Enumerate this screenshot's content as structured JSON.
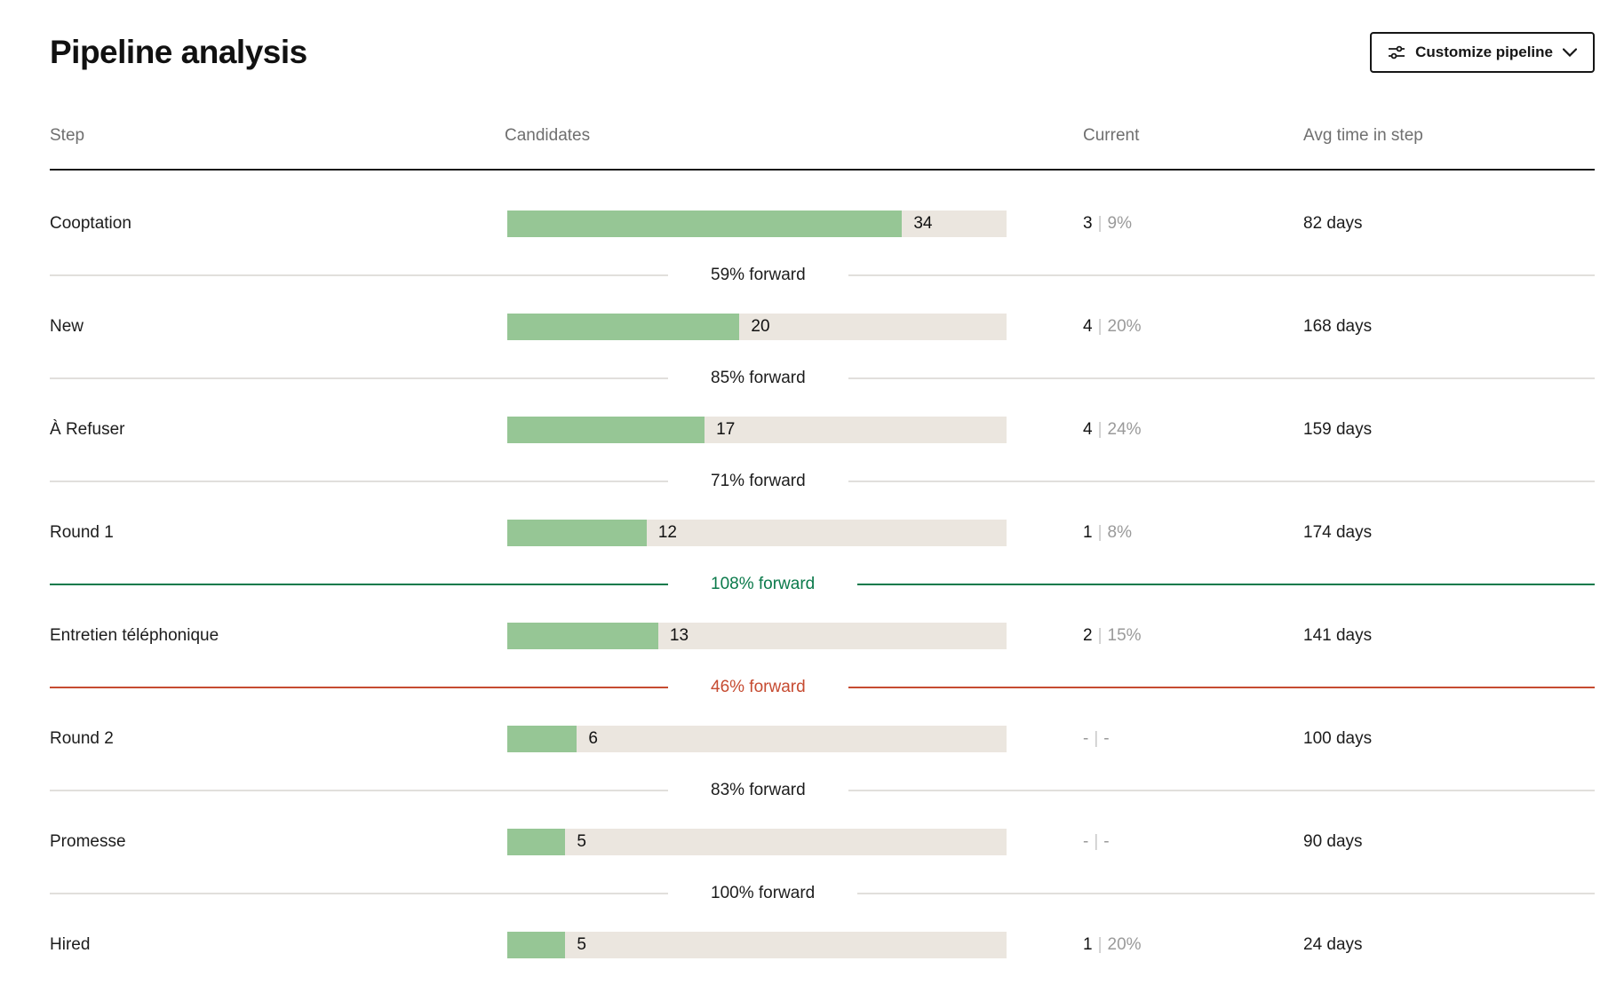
{
  "header": {
    "title": "Pipeline analysis",
    "customize_button": {
      "label": "Customize pipeline"
    }
  },
  "columns": {
    "step": "Step",
    "candidates": "Candidates",
    "current": "Current",
    "avg_time": "Avg time in step"
  },
  "ui": {
    "divider": "|"
  },
  "colors": {
    "bar_fill": "#96C695",
    "bar_track": "#EBE6DF",
    "forward_normal_line": "#E1DFDC",
    "forward_good": "#0B7A4B",
    "forward_bad": "#C64B31",
    "header_text": "#6f6f6f",
    "muted_text": "#9a9a9a"
  },
  "chart_data": {
    "type": "bar",
    "title": "Pipeline analysis",
    "orientation": "horizontal",
    "scale_total": 43,
    "steps": [
      {
        "step": "Cooptation",
        "candidates": 34,
        "current_count": "3",
        "current_pct": "9%",
        "avg_time": "82 days",
        "muted": "false"
      },
      {
        "step": "New",
        "candidates": 20,
        "current_count": "4",
        "current_pct": "20%",
        "avg_time": "168 days",
        "muted": "false"
      },
      {
        "step": "À Refuser",
        "candidates": 17,
        "current_count": "4",
        "current_pct": "24%",
        "avg_time": "159 days",
        "muted": "false"
      },
      {
        "step": "Round 1",
        "candidates": 12,
        "current_count": "1",
        "current_pct": "8%",
        "avg_time": "174 days",
        "muted": "false"
      },
      {
        "step": "Entretien téléphonique",
        "candidates": 13,
        "current_count": "2",
        "current_pct": "15%",
        "avg_time": "141 days",
        "muted": "false"
      },
      {
        "step": "Round 2",
        "candidates": 6,
        "current_count": "-",
        "current_pct": "-",
        "avg_time": "100 days",
        "muted": "true"
      },
      {
        "step": "Promesse",
        "candidates": 5,
        "current_count": "-",
        "current_pct": "-",
        "avg_time": "90 days",
        "muted": "true"
      },
      {
        "step": "Hired",
        "candidates": 5,
        "current_count": "1",
        "current_pct": "20%",
        "avg_time": "24 days",
        "muted": "false"
      }
    ],
    "transitions": [
      {
        "label": "59% forward",
        "status": "normal"
      },
      {
        "label": "85% forward",
        "status": "normal"
      },
      {
        "label": "71% forward",
        "status": "normal"
      },
      {
        "label": "108% forward",
        "status": "good"
      },
      {
        "label": "46% forward",
        "status": "bad"
      },
      {
        "label": "83% forward",
        "status": "normal"
      },
      {
        "label": "100% forward",
        "status": "normal"
      }
    ]
  }
}
